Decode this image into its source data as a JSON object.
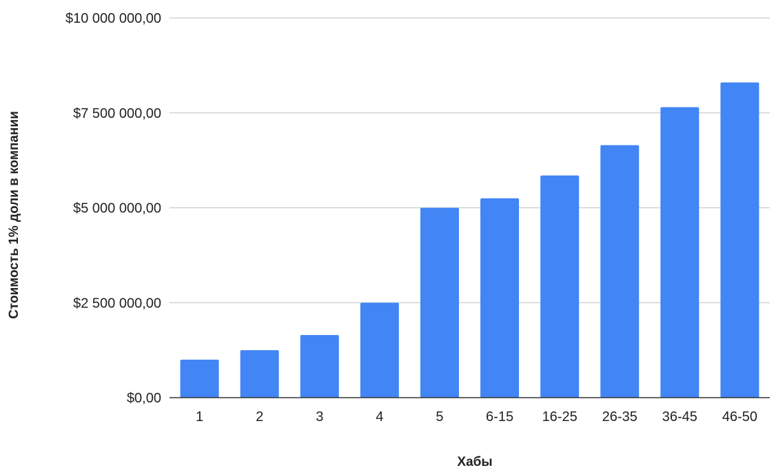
{
  "chart_data": {
    "type": "bar",
    "title": "",
    "xlabel": "Хабы",
    "ylabel": "Стоимость 1% доли в компании",
    "categories": [
      "1",
      "2",
      "3",
      "4",
      "5",
      "6-15",
      "16-25",
      "26-35",
      "36-45",
      "46-50"
    ],
    "values": [
      1000000,
      1250000,
      1650000,
      2500000,
      5000000,
      5250000,
      5850000,
      6650000,
      7650000,
      8300000
    ],
    "ylim": [
      0,
      10000000
    ],
    "y_ticks": [
      0,
      2500000,
      5000000,
      7500000,
      10000000
    ],
    "y_tick_labels": [
      "$0,00",
      "$2 500 000,00",
      "$5 000 000,00",
      "$7 500 000,00",
      "$10 000 000,00"
    ],
    "grid": "horizontal",
    "legend": "none",
    "colors": {
      "bar": "#4285f4",
      "grid": "#cccccc",
      "axis": "#333333",
      "text": "#222222"
    }
  }
}
